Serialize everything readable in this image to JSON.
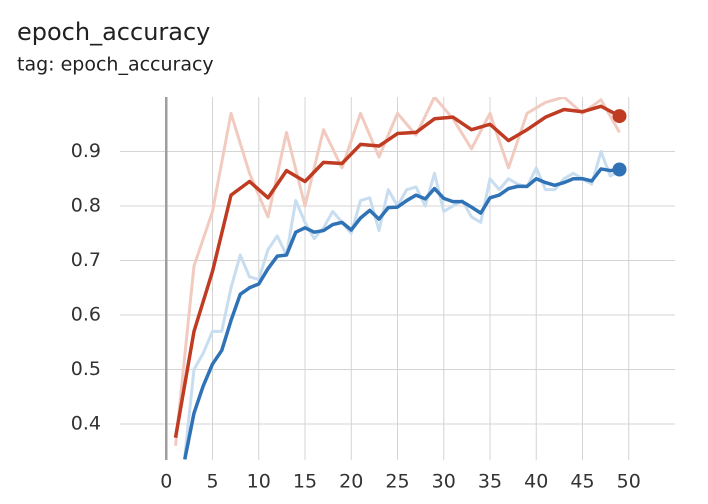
{
  "chart_data": {
    "type": "line",
    "title": "epoch_accuracy",
    "subtitle": "tag: epoch_accuracy",
    "xlim": [
      -5,
      55
    ],
    "ylim": [
      0.334,
      1.0
    ],
    "xticks": [
      0,
      5,
      10,
      15,
      20,
      25,
      30,
      35,
      40,
      45,
      50
    ],
    "yticks": [
      0.4,
      0.5,
      0.6,
      0.7,
      0.8,
      0.9
    ],
    "grid": true,
    "series": [
      {
        "color": "#f2cbc0",
        "x": [
          1,
          3,
          5,
          7,
          9,
          11,
          13,
          15,
          17,
          19,
          21,
          23,
          25,
          27,
          29,
          31,
          33,
          35,
          37,
          39,
          41,
          43,
          45,
          47,
          49
        ],
        "values": [
          0.36,
          0.69,
          0.79,
          0.97,
          0.86,
          0.78,
          0.935,
          0.8,
          0.94,
          0.87,
          0.97,
          0.89,
          0.97,
          0.93,
          1.0,
          0.96,
          0.905,
          0.97,
          0.87,
          0.97,
          0.99,
          1.0,
          0.97,
          0.995,
          0.935
        ]
      },
      {
        "color": "#c8ddef",
        "x": [
          2,
          3,
          4,
          5,
          6,
          7,
          8,
          9,
          10,
          11,
          12,
          13,
          14,
          15,
          16,
          17,
          18,
          19,
          20,
          21,
          22,
          23,
          24,
          25,
          26,
          27,
          28,
          29,
          30,
          31,
          32,
          33,
          34,
          35,
          36,
          37,
          38,
          39,
          40,
          41,
          42,
          43,
          44,
          45,
          46,
          47,
          48,
          49
        ],
        "values": [
          0.34,
          0.5,
          0.53,
          0.57,
          0.57,
          0.65,
          0.71,
          0.67,
          0.665,
          0.72,
          0.745,
          0.71,
          0.81,
          0.77,
          0.74,
          0.76,
          0.79,
          0.77,
          0.75,
          0.81,
          0.815,
          0.755,
          0.83,
          0.8,
          0.83,
          0.835,
          0.8,
          0.86,
          0.79,
          0.8,
          0.81,
          0.78,
          0.77,
          0.85,
          0.83,
          0.85,
          0.84,
          0.835,
          0.87,
          0.83,
          0.83,
          0.85,
          0.86,
          0.85,
          0.84,
          0.9,
          0.855,
          0.865
        ]
      },
      {
        "color": "#bf3b22",
        "x": [
          1,
          3,
          5,
          7,
          9,
          11,
          13,
          15,
          17,
          19,
          21,
          23,
          25,
          27,
          29,
          31,
          33,
          35,
          37,
          39,
          41,
          43,
          45,
          47,
          49
        ],
        "values": [
          0.375,
          0.57,
          0.68,
          0.82,
          0.845,
          0.815,
          0.865,
          0.845,
          0.88,
          0.878,
          0.913,
          0.91,
          0.933,
          0.935,
          0.96,
          0.963,
          0.94,
          0.95,
          0.92,
          0.94,
          0.963,
          0.977,
          0.973,
          0.983,
          0.965
        ]
      },
      {
        "color": "#2f72b5",
        "x": [
          2,
          3,
          4,
          5,
          6,
          7,
          8,
          9,
          10,
          11,
          12,
          13,
          14,
          15,
          16,
          17,
          18,
          19,
          20,
          21,
          22,
          23,
          24,
          25,
          26,
          27,
          28,
          29,
          30,
          31,
          32,
          33,
          34,
          35,
          36,
          37,
          38,
          39,
          40,
          41,
          42,
          43,
          44,
          45,
          46,
          47,
          48,
          49
        ],
        "values": [
          0.335,
          0.42,
          0.47,
          0.51,
          0.535,
          0.59,
          0.638,
          0.65,
          0.657,
          0.685,
          0.708,
          0.71,
          0.752,
          0.76,
          0.752,
          0.755,
          0.766,
          0.77,
          0.756,
          0.778,
          0.792,
          0.776,
          0.797,
          0.798,
          0.81,
          0.82,
          0.813,
          0.832,
          0.814,
          0.808,
          0.808,
          0.798,
          0.787,
          0.815,
          0.82,
          0.832,
          0.836,
          0.836,
          0.85,
          0.843,
          0.838,
          0.843,
          0.85,
          0.85,
          0.846,
          0.868,
          0.865,
          0.867
        ]
      }
    ]
  }
}
